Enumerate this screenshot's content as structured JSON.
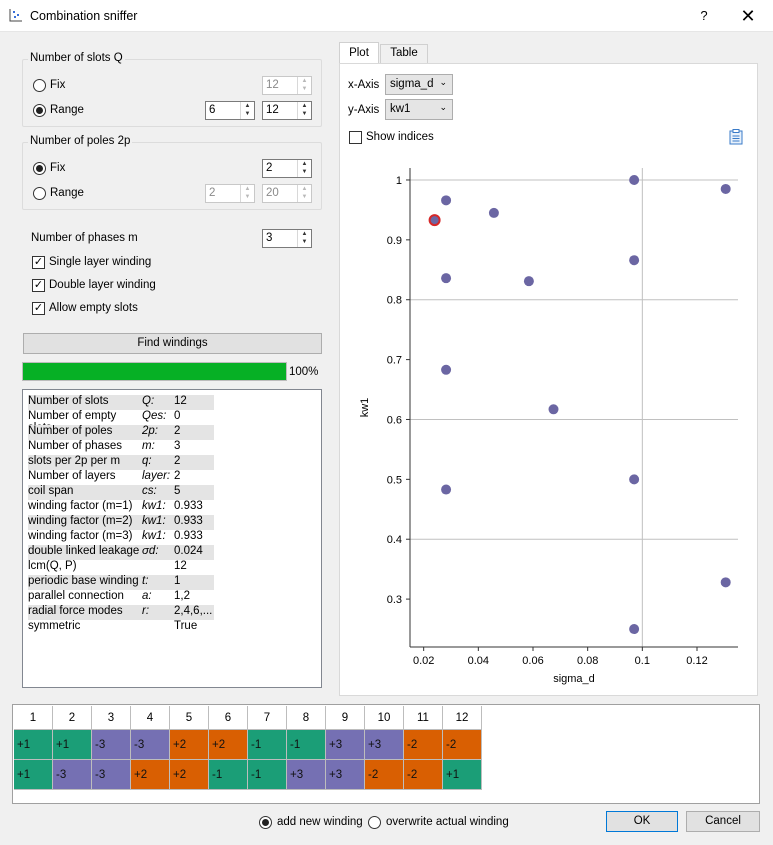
{
  "window": {
    "title": "Combination sniffer",
    "help_label": "?",
    "close_label": "✕",
    "icon": "scatter-plot-icon"
  },
  "slots_group": {
    "title": "Number of slots Q",
    "fix_label": "Fix",
    "fix_value": "12",
    "range_label": "Range",
    "range_min": "6",
    "range_max": "12",
    "selected": "Range"
  },
  "poles_group": {
    "title": "Number of poles 2p",
    "fix_label": "Fix",
    "fix_value": "2",
    "range_label": "Range",
    "range_min": "2",
    "range_max": "20",
    "selected": "Fix"
  },
  "phases": {
    "label": "Number of phases m",
    "value": "3"
  },
  "options": {
    "single_layer": "Single layer winding",
    "double_layer": "Double layer winding",
    "allow_empty": "Allow empty slots"
  },
  "find_button": "Find windings",
  "progress": {
    "percent_value": 1.0,
    "label": "100%"
  },
  "info_rows": [
    [
      "Number of slots",
      "Q:",
      "12"
    ],
    [
      "Number of empty slots",
      "Qes:",
      "0"
    ],
    [
      "Number of poles",
      "2p:",
      "2"
    ],
    [
      "Number of phases",
      "m:",
      "3"
    ],
    [
      "slots per 2p per m",
      "q:",
      "2"
    ],
    [
      "Number of layers",
      "layer:",
      "2"
    ],
    [
      "coil span",
      "cs:",
      "5"
    ],
    [
      "winding factor (m=1)",
      "kw1:",
      "0.933"
    ],
    [
      "winding factor (m=2)",
      "kw1:",
      "0.933"
    ],
    [
      "winding factor (m=3)",
      "kw1:",
      "0.933"
    ],
    [
      "double linked leakage",
      "σd:",
      "0.024"
    ],
    [
      "lcm(Q, P)",
      "",
      "12"
    ],
    [
      "periodic base winding",
      "t:",
      "1"
    ],
    [
      "parallel connection",
      "a:",
      "1,2"
    ],
    [
      "radial force modes",
      "r:",
      "2,4,6,..."
    ],
    [
      "symmetric",
      "",
      "True"
    ]
  ],
  "tabs": {
    "plot": "Plot",
    "table": "Table",
    "active": "Plot"
  },
  "axis_select": {
    "x_label": "x-Axis",
    "x_value": "sigma_d",
    "y_label": "y-Axis",
    "y_value": "kw1"
  },
  "show_indices": "Show indices",
  "copy_icon": "clipboard-icon",
  "chart_data": {
    "type": "scatter",
    "xlabel": "sigma_d",
    "ylabel": "kw1",
    "xlim": [
      0.015,
      0.135
    ],
    "ylim": [
      0.22,
      1.02
    ],
    "xticks": [
      0.02,
      0.04,
      0.06,
      0.08,
      0.1,
      0.12
    ],
    "xtick_labels": [
      "0.02",
      "0.04",
      "0.06",
      "0.08",
      "0.1",
      "0.12"
    ],
    "yticks": [
      0.3,
      0.4,
      0.5,
      0.6,
      0.7,
      0.8,
      0.9,
      1.0
    ],
    "ytick_labels": [
      "0.3",
      "0.4",
      "0.5",
      "0.6",
      "0.7",
      "0.8",
      "0.9",
      "1"
    ],
    "grid_x": [
      0.1
    ],
    "grid_y": [
      0.4,
      0.6,
      0.8,
      1.0
    ],
    "points": [
      {
        "x": 0.024,
        "y": 0.933,
        "selected": true
      },
      {
        "x": 0.0282,
        "y": 0.966
      },
      {
        "x": 0.0282,
        "y": 0.836
      },
      {
        "x": 0.0282,
        "y": 0.683
      },
      {
        "x": 0.0282,
        "y": 0.483
      },
      {
        "x": 0.0457,
        "y": 0.945
      },
      {
        "x": 0.0585,
        "y": 0.831
      },
      {
        "x": 0.0675,
        "y": 0.617
      },
      {
        "x": 0.097,
        "y": 1.0
      },
      {
        "x": 0.097,
        "y": 0.866
      },
      {
        "x": 0.097,
        "y": 0.5
      },
      {
        "x": 0.097,
        "y": 0.25
      },
      {
        "x": 0.1305,
        "y": 0.985
      },
      {
        "x": 0.1305,
        "y": 0.328
      }
    ],
    "point_color": "#6b66a3",
    "selected_color": "#d62728"
  },
  "winding_table": {
    "headers": [
      "1",
      "2",
      "3",
      "4",
      "5",
      "6",
      "7",
      "8",
      "9",
      "10",
      "11",
      "12"
    ],
    "rows": [
      [
        "+1",
        "+1",
        "-3",
        "-3",
        "+2",
        "+2",
        "-1",
        "-1",
        "+3",
        "+3",
        "-2",
        "-2"
      ],
      [
        "+1",
        "-3",
        "-3",
        "+2",
        "+2",
        "-1",
        "-1",
        "+3",
        "+3",
        "-2",
        "-2",
        "+1"
      ]
    ],
    "phase_colors": {
      "1": "#1b9e77",
      "2": "#d95f02",
      "3": "#7570b3"
    }
  },
  "footer": {
    "add_new": "add new winding",
    "overwrite": "overwrite actual winding",
    "selected": "add_new",
    "ok": "OK",
    "cancel": "Cancel"
  }
}
